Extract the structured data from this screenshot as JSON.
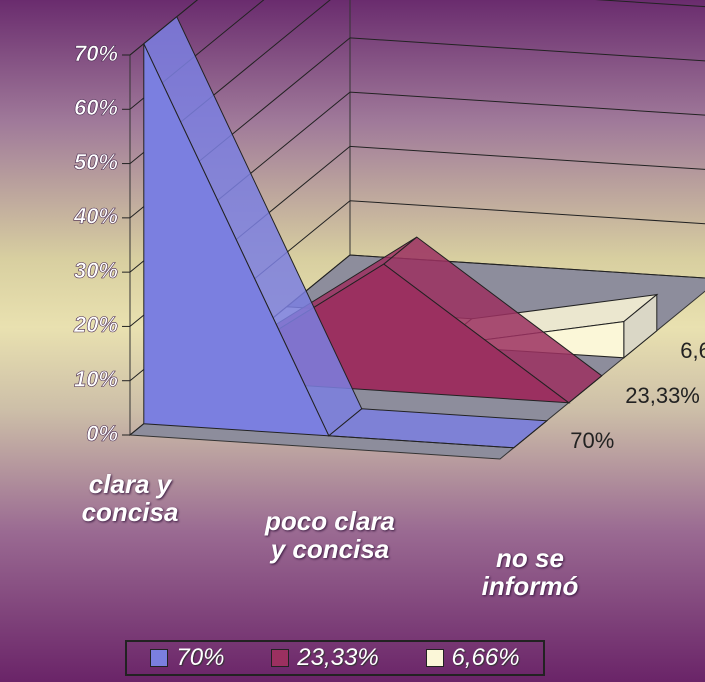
{
  "chart_data": {
    "type": "area3d",
    "categories": [
      "clara y concisa",
      "poco clara y concisa",
      "no se informó"
    ],
    "series": [
      {
        "name": "70%",
        "color": "#7b7fe0",
        "values": [
          70,
          0,
          0
        ]
      },
      {
        "name": "23,33%",
        "color": "#9b3060",
        "values": [
          0,
          23.33,
          0
        ]
      },
      {
        "name": "6,66%",
        "color": "#fbf7d8",
        "values": [
          0,
          0,
          6.66
        ]
      }
    ],
    "ylim": [
      0,
      70
    ],
    "yticks": [
      {
        "value": 0,
        "label": "0%"
      },
      {
        "value": 10,
        "label": "10%"
      },
      {
        "value": 20,
        "label": "20%"
      },
      {
        "value": 30,
        "label": "30%"
      },
      {
        "value": 40,
        "label": "40%"
      },
      {
        "value": 50,
        "label": "50%"
      },
      {
        "value": 60,
        "label": "60%"
      },
      {
        "value": 70,
        "label": "70%"
      }
    ],
    "grid": true
  }
}
